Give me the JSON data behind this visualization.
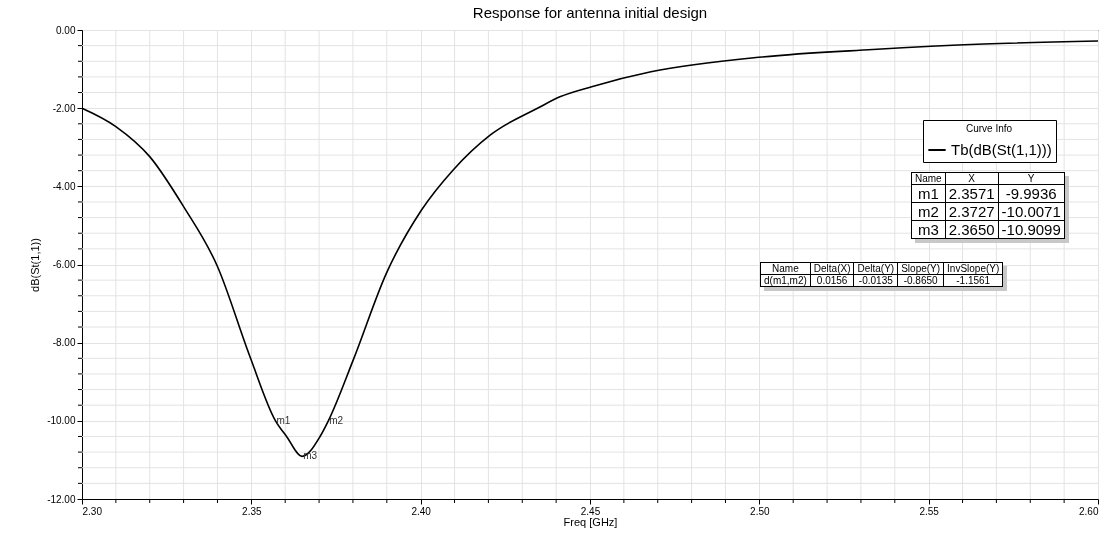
{
  "chart_data": {
    "type": "line",
    "title": "Response for antenna initial design",
    "xlabel": "Freq [GHz]",
    "ylabel": "dB(St(1,1))",
    "legend_title": "Curve Info",
    "legend": "right",
    "grid": true,
    "line_style": "solid",
    "marker": "none",
    "xlim": [
      2.3,
      2.6
    ],
    "ylim": [
      -12,
      0
    ],
    "xticks": [
      {
        "value": 2.3,
        "label": "2.30"
      },
      {
        "value": 2.31,
        "label": null
      },
      {
        "value": 2.32,
        "label": null
      },
      {
        "value": 2.33,
        "label": null
      },
      {
        "value": 2.34,
        "label": null
      },
      {
        "value": 2.35,
        "label": "2.35"
      },
      {
        "value": 2.36,
        "label": null
      },
      {
        "value": 2.37,
        "label": null
      },
      {
        "value": 2.38,
        "label": null
      },
      {
        "value": 2.39,
        "label": null
      },
      {
        "value": 2.4,
        "label": "2.40"
      },
      {
        "value": 2.41,
        "label": null
      },
      {
        "value": 2.42,
        "label": null
      },
      {
        "value": 2.43,
        "label": null
      },
      {
        "value": 2.44,
        "label": null
      },
      {
        "value": 2.45,
        "label": "2.45"
      },
      {
        "value": 2.46,
        "label": null
      },
      {
        "value": 2.47,
        "label": null
      },
      {
        "value": 2.48,
        "label": null
      },
      {
        "value": 2.49,
        "label": null
      },
      {
        "value": 2.5,
        "label": "2.50"
      },
      {
        "value": 2.51,
        "label": null
      },
      {
        "value": 2.52,
        "label": null
      },
      {
        "value": 2.53,
        "label": null
      },
      {
        "value": 2.54,
        "label": null
      },
      {
        "value": 2.55,
        "label": "2.55"
      },
      {
        "value": 2.56,
        "label": null
      },
      {
        "value": 2.57,
        "label": null
      },
      {
        "value": 2.58,
        "label": null
      },
      {
        "value": 2.59,
        "label": null
      },
      {
        "value": 2.6,
        "label": "2.60"
      }
    ],
    "yticks": [
      {
        "value": -12,
        "label": "-12.00"
      },
      {
        "value": -11.6,
        "label": null
      },
      {
        "value": -11.2,
        "label": null
      },
      {
        "value": -10.8,
        "label": null
      },
      {
        "value": -10.4,
        "label": null
      },
      {
        "value": -10,
        "label": "-10.00"
      },
      {
        "value": -9.6,
        "label": null
      },
      {
        "value": -9.2,
        "label": null
      },
      {
        "value": -8.8,
        "label": null
      },
      {
        "value": -8.4,
        "label": null
      },
      {
        "value": -8,
        "label": "-8.00"
      },
      {
        "value": -7.6,
        "label": null
      },
      {
        "value": -7.2,
        "label": null
      },
      {
        "value": -6.8,
        "label": null
      },
      {
        "value": -6.4,
        "label": null
      },
      {
        "value": -6,
        "label": "-6.00"
      },
      {
        "value": -5.6,
        "label": null
      },
      {
        "value": -5.2,
        "label": null
      },
      {
        "value": -4.8,
        "label": null
      },
      {
        "value": -4.4,
        "label": null
      },
      {
        "value": -4,
        "label": "-4.00"
      },
      {
        "value": -3.6,
        "label": null
      },
      {
        "value": -3.2,
        "label": null
      },
      {
        "value": -2.8,
        "label": null
      },
      {
        "value": -2.4,
        "label": null
      },
      {
        "value": -2,
        "label": "-2.00"
      },
      {
        "value": -1.6,
        "label": null
      },
      {
        "value": -1.2,
        "label": null
      },
      {
        "value": -0.8,
        "label": null
      },
      {
        "value": -0.4,
        "label": null
      },
      {
        "value": 0,
        "label": "0.00"
      }
    ],
    "series": [
      {
        "name": "Tb(dB(St(1,1)))",
        "color": "#000000",
        "x": [
          2.3,
          2.31,
          2.32,
          2.33,
          2.34,
          2.3496,
          2.3571,
          2.3604,
          2.365,
          2.3703,
          2.3727,
          2.3801,
          2.3899,
          2.4003,
          2.4096,
          2.4205,
          2.4352,
          2.4411,
          2.4505,
          2.468,
          2.5008,
          2.5335,
          2.5663,
          2.6
        ],
        "values": [
          -2.0,
          -2.47,
          -3.24,
          -4.52,
          -6.05,
          -8.36,
          -9.9936,
          -10.4,
          -10.9099,
          -10.4,
          -10.0071,
          -8.44,
          -6.22,
          -4.6,
          -3.58,
          -2.69,
          -1.97,
          -1.71,
          -1.45,
          -1.07,
          -0.69,
          -0.5,
          -0.36,
          -0.28
        ]
      }
    ],
    "annotations": [
      {
        "text": "m1",
        "x": 2.3571,
        "y": -9.9936
      },
      {
        "text": "m2",
        "x": 2.3727,
        "y": -10.0071
      },
      {
        "text": "m3",
        "x": 2.365,
        "y": -10.9099
      },
      "Name",
      "X",
      "Y",
      "m1",
      "2.3571",
      "-9.9936",
      "m2",
      "2.3727",
      "-10.0071",
      "m3",
      "2.3650",
      "-10.9099",
      "Name",
      "Delta(X)",
      "Delta(Y)",
      "Slope(Y)",
      "InvSlope(Y)",
      "d(m1,m2)",
      "0.0156",
      "-0.0135",
      "-0.8650",
      "-1.1561"
    ]
  }
}
